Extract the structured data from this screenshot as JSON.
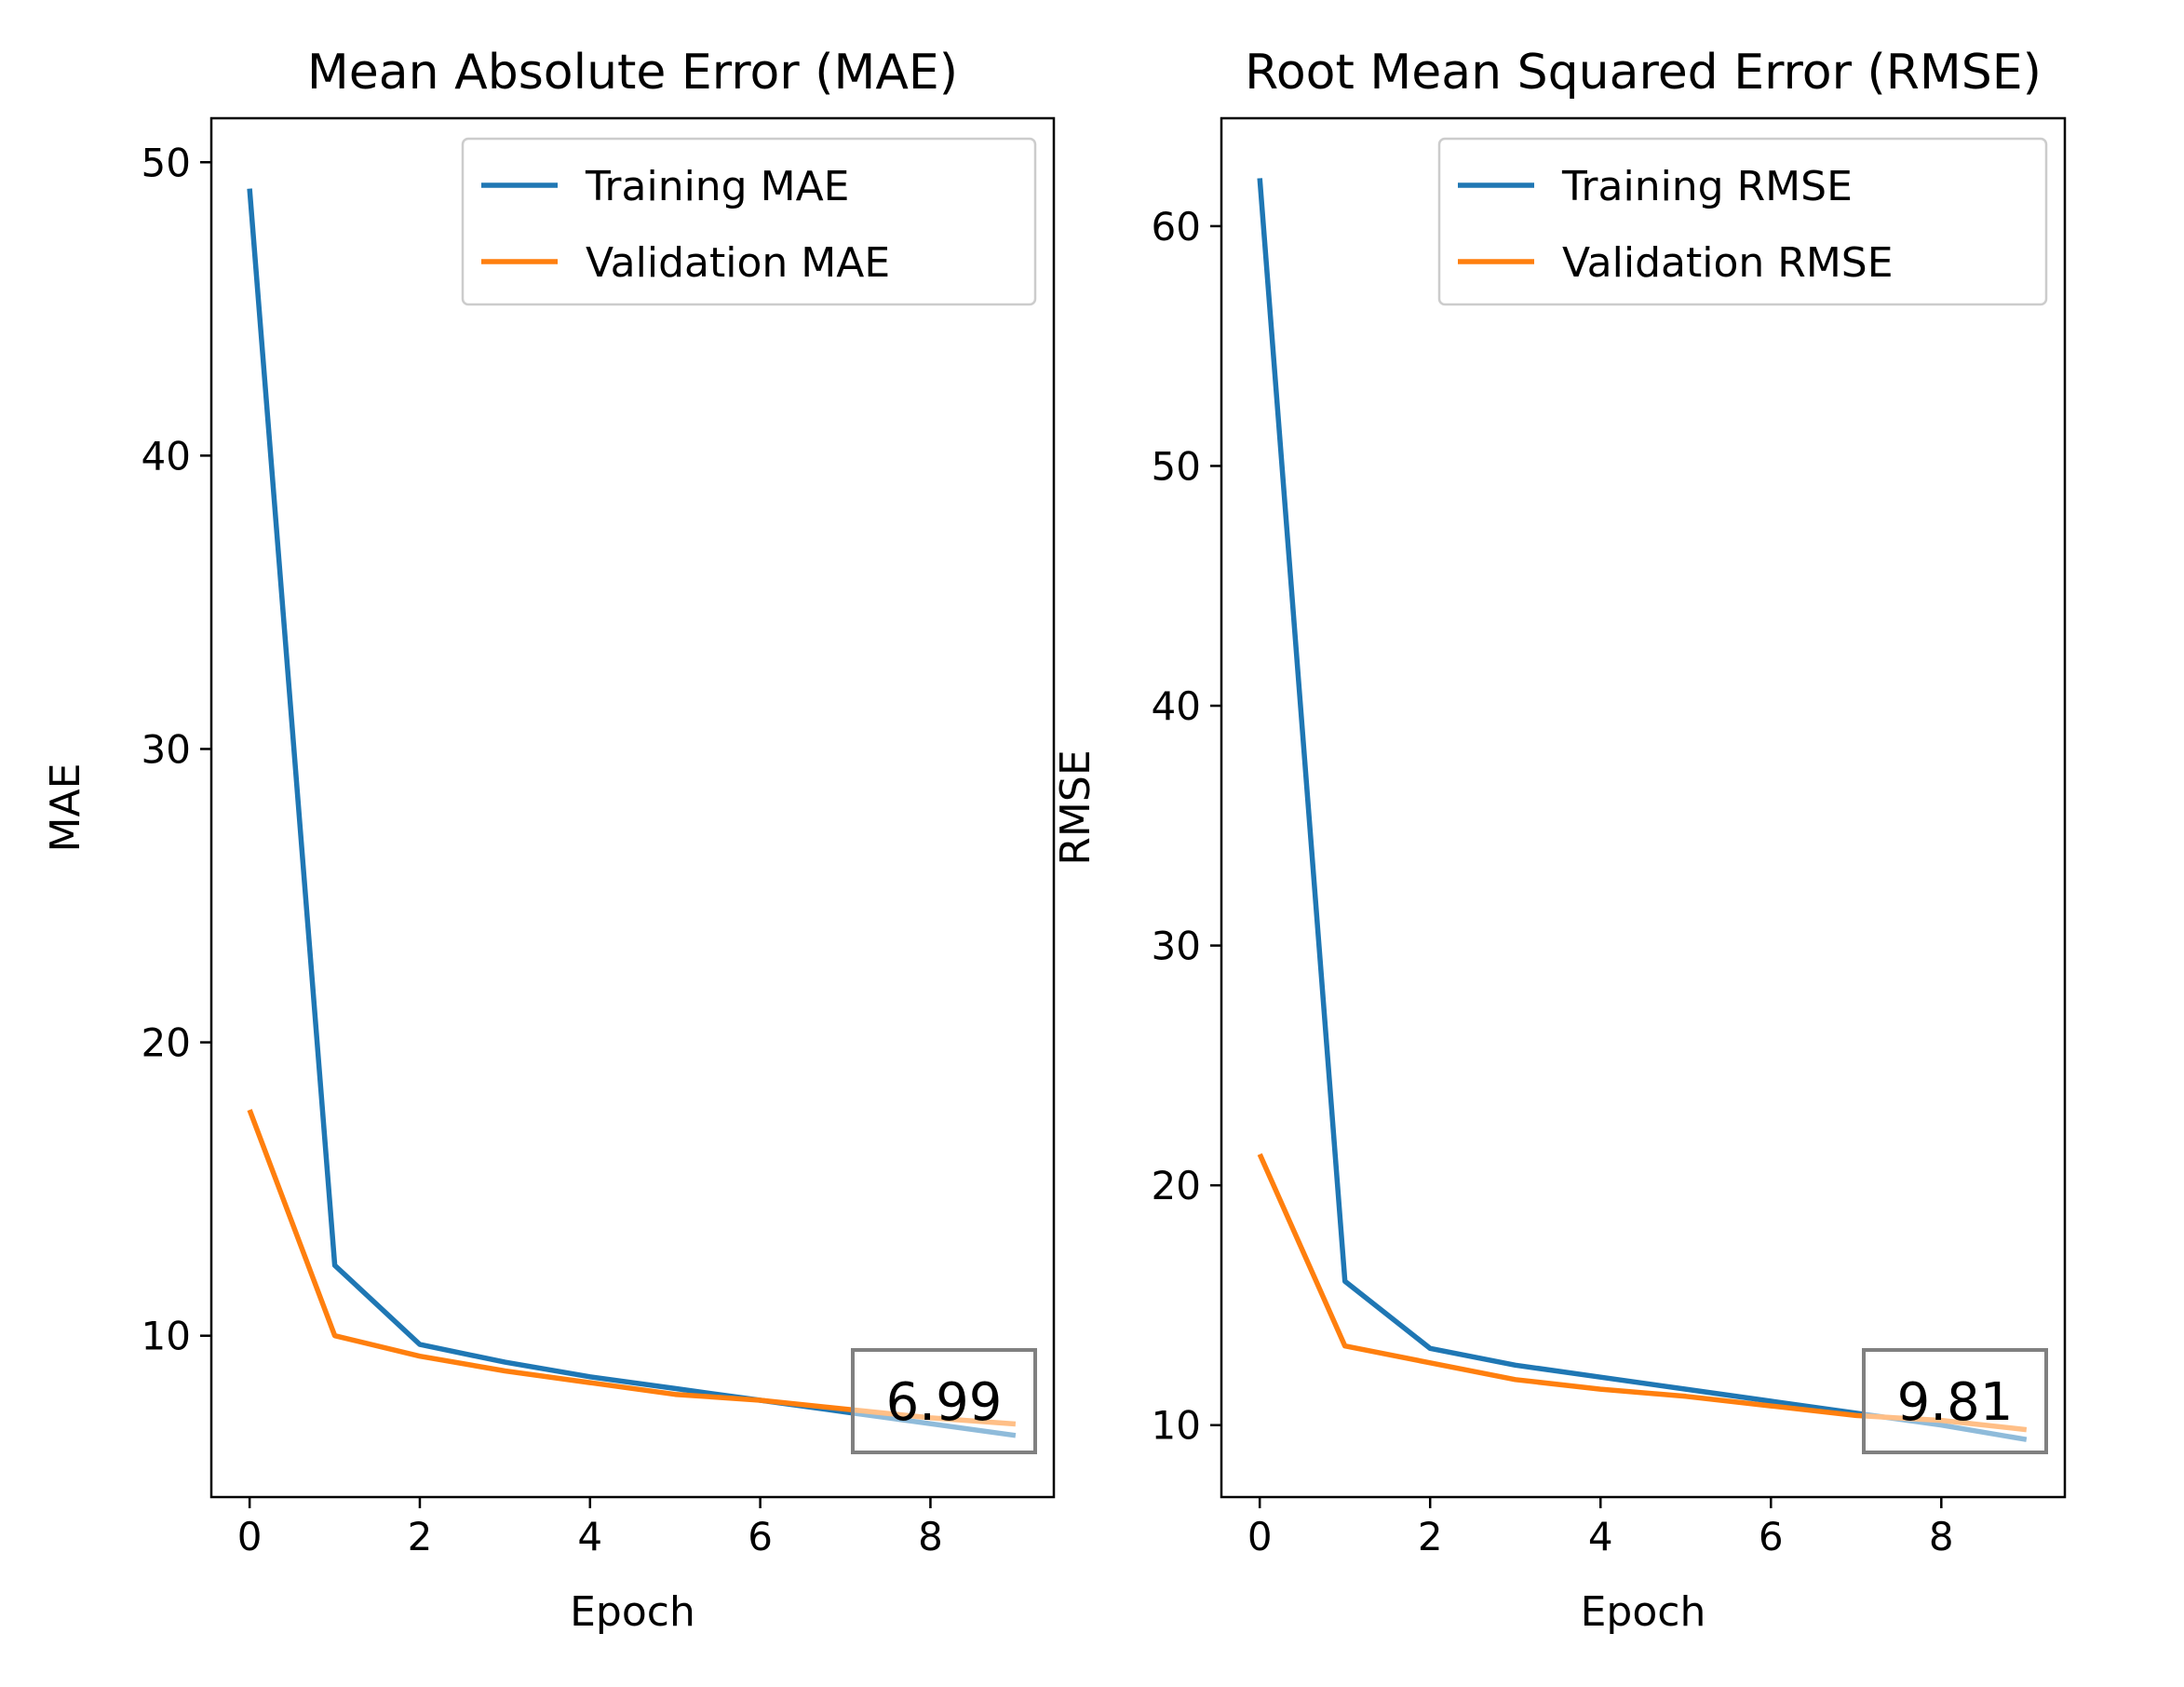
{
  "colors": {
    "training": "#1f77b4",
    "validation": "#ff7f0e",
    "annotation_box": "#808080",
    "axes": "#000000"
  },
  "chart_data": [
    {
      "type": "line",
      "title": "Mean Absolute Error (MAE)",
      "xlabel": "Epoch",
      "ylabel": "MAE",
      "xlim": [
        -0.45,
        9.45
      ],
      "ylim": [
        4.5,
        51.5
      ],
      "xticks": [
        0,
        2,
        4,
        6,
        8
      ],
      "yticks": [
        10,
        20,
        30,
        40,
        50
      ],
      "grid": false,
      "legend_position": "upper right",
      "x": [
        0,
        1,
        2,
        3,
        4,
        5,
        6,
        7,
        8,
        9
      ],
      "series": [
        {
          "name": "Training MAE",
          "color_key": "training",
          "values": [
            49.1,
            12.4,
            9.7,
            9.1,
            8.6,
            8.2,
            7.8,
            7.4,
            7.0,
            6.6
          ]
        },
        {
          "name": "Validation MAE",
          "color_key": "validation",
          "values": [
            17.7,
            10.0,
            9.3,
            8.8,
            8.4,
            8.0,
            7.8,
            7.5,
            7.2,
            6.99
          ]
        }
      ],
      "annotation": {
        "text": "6.99",
        "position": "lower right"
      }
    },
    {
      "type": "line",
      "title": "Root Mean Squared Error (RMSE)",
      "xlabel": "Epoch",
      "ylabel": "RMSE",
      "xlim": [
        -0.45,
        9.45
      ],
      "ylim": [
        7.0,
        64.5
      ],
      "xticks": [
        0,
        2,
        4,
        6,
        8
      ],
      "yticks": [
        10,
        20,
        30,
        40,
        50,
        60
      ],
      "grid": false,
      "legend_position": "upper right",
      "x": [
        0,
        1,
        2,
        3,
        4,
        5,
        6,
        7,
        8,
        9
      ],
      "series": [
        {
          "name": "Training RMSE",
          "color_key": "training",
          "values": [
            62.0,
            16.0,
            13.2,
            12.5,
            12.0,
            11.5,
            11.0,
            10.5,
            10.0,
            9.4
          ]
        },
        {
          "name": "Validation RMSE",
          "color_key": "validation",
          "values": [
            21.3,
            13.3,
            12.6,
            11.9,
            11.5,
            11.2,
            10.8,
            10.4,
            10.2,
            9.81
          ]
        }
      ],
      "annotation": {
        "text": "9.81",
        "position": "lower right"
      }
    }
  ]
}
